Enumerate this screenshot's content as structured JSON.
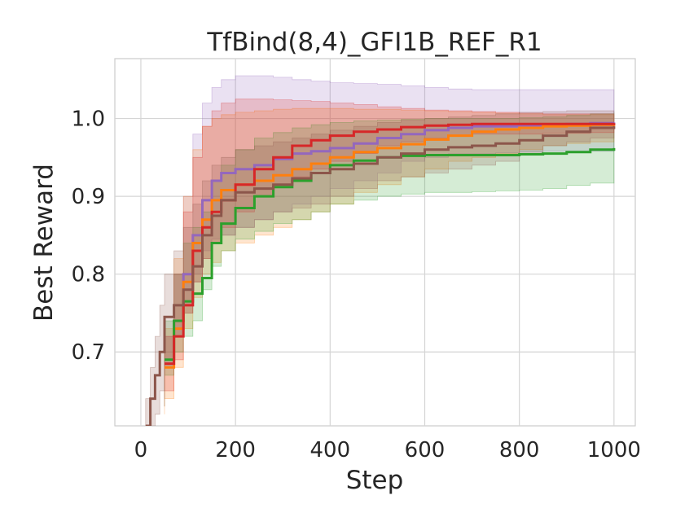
{
  "chart_data": {
    "type": "line",
    "title": "TfBind(8,4)_GFI1B_REF_R1",
    "xlabel": "Step",
    "ylabel": "Best Reward",
    "xlim": [
      -55,
      1045
    ],
    "ylim": [
      0.605,
      1.077
    ],
    "xticks": [
      0,
      200,
      400,
      600,
      800,
      1000
    ],
    "xtick_labels": [
      "0",
      "200",
      "400",
      "600",
      "800",
      "1000"
    ],
    "yticks": [
      0.7,
      0.8,
      0.9,
      1.0
    ],
    "ytick_labels": [
      "0.7",
      "0.8",
      "0.9",
      "1.0"
    ],
    "grid": true,
    "legend": "none",
    "series": [
      {
        "color": "#9467bd",
        "x": [
          50,
          70,
          90,
          110,
          130,
          150,
          170,
          200,
          240,
          280,
          320,
          360,
          400,
          450,
          500,
          550,
          600,
          650,
          700,
          750,
          800,
          850,
          900,
          950,
          1000
        ],
        "y": [
          0.685,
          0.74,
          0.8,
          0.85,
          0.895,
          0.92,
          0.93,
          0.935,
          0.94,
          0.948,
          0.955,
          0.958,
          0.962,
          0.968,
          0.975,
          0.98,
          0.985,
          0.988,
          0.99,
          0.99,
          0.991,
          0.992,
          0.993,
          0.994,
          0.995
        ],
        "lower": [
          0.64,
          0.68,
          0.72,
          0.76,
          0.8,
          0.83,
          0.845,
          0.85,
          0.86,
          0.87,
          0.88,
          0.89,
          0.9,
          0.91,
          0.92,
          0.93,
          0.945,
          0.95,
          0.955,
          0.955,
          0.956,
          0.957,
          0.958,
          0.958,
          0.958
        ],
        "upper": [
          0.72,
          0.8,
          0.9,
          0.98,
          1.02,
          1.04,
          1.05,
          1.055,
          1.055,
          1.053,
          1.05,
          1.048,
          1.046,
          1.045,
          1.044,
          1.042,
          1.04,
          1.038,
          1.037,
          1.037,
          1.037,
          1.037,
          1.037,
          1.037,
          1.037
        ]
      },
      {
        "color": "#ff7f0e",
        "x": [
          50,
          70,
          90,
          110,
          130,
          150,
          170,
          200,
          240,
          280,
          320,
          360,
          400,
          450,
          500,
          550,
          600,
          650,
          700,
          750,
          800,
          850,
          900,
          950,
          1000
        ],
        "y": [
          0.68,
          0.73,
          0.79,
          0.84,
          0.87,
          0.895,
          0.908,
          0.915,
          0.92,
          0.927,
          0.935,
          0.942,
          0.95,
          0.957,
          0.962,
          0.967,
          0.973,
          0.978,
          0.983,
          0.986,
          0.988,
          0.99,
          0.991,
          0.992,
          0.993
        ],
        "lower": [
          0.62,
          0.64,
          0.68,
          0.73,
          0.77,
          0.8,
          0.815,
          0.83,
          0.84,
          0.85,
          0.86,
          0.87,
          0.88,
          0.89,
          0.905,
          0.915,
          0.925,
          0.935,
          0.945,
          0.95,
          0.955,
          0.96,
          0.965,
          0.968,
          0.97
        ],
        "upper": [
          0.73,
          0.82,
          0.9,
          0.96,
          0.99,
          1.0,
          1.005,
          1.008,
          1.01,
          1.012,
          1.013,
          1.013,
          1.013,
          1.012,
          1.012,
          1.011,
          1.01,
          1.009,
          1.008,
          1.007,
          1.006,
          1.005,
          1.005,
          1.005,
          1.005
        ]
      },
      {
        "color": "#2ca02c",
        "x": [
          50,
          70,
          90,
          110,
          130,
          150,
          170,
          200,
          240,
          280,
          320,
          360,
          400,
          450,
          500,
          550,
          600,
          650,
          700,
          750,
          800,
          850,
          900,
          950,
          1000
        ],
        "y": [
          0.69,
          0.74,
          0.765,
          0.775,
          0.795,
          0.84,
          0.865,
          0.885,
          0.9,
          0.912,
          0.92,
          0.93,
          0.94,
          0.946,
          0.95,
          0.952,
          0.953,
          0.953,
          0.953,
          0.953,
          0.954,
          0.955,
          0.957,
          0.96,
          0.962
        ],
        "lower": [
          0.63,
          0.67,
          0.7,
          0.72,
          0.74,
          0.78,
          0.81,
          0.83,
          0.845,
          0.855,
          0.865,
          0.87,
          0.88,
          0.89,
          0.895,
          0.9,
          0.903,
          0.905,
          0.905,
          0.906,
          0.907,
          0.908,
          0.91,
          0.914,
          0.917
        ],
        "upper": [
          0.74,
          0.8,
          0.84,
          0.86,
          0.88,
          0.92,
          0.94,
          0.96,
          0.975,
          0.982,
          0.988,
          0.992,
          0.995,
          0.997,
          0.998,
          0.999,
          1.0,
          1.0,
          1.0,
          1.0,
          1.001,
          1.002,
          1.004,
          1.006,
          1.008
        ]
      },
      {
        "color": "#d62728",
        "x": [
          50,
          70,
          90,
          110,
          130,
          150,
          170,
          200,
          240,
          280,
          320,
          360,
          400,
          450,
          500,
          550,
          600,
          650,
          700,
          750,
          800,
          850,
          900,
          950,
          1000
        ],
        "y": [
          0.685,
          0.72,
          0.76,
          0.83,
          0.86,
          0.88,
          0.895,
          0.915,
          0.935,
          0.95,
          0.965,
          0.972,
          0.978,
          0.983,
          0.986,
          0.989,
          0.991,
          0.992,
          0.993,
          0.993,
          0.993,
          0.993,
          0.993,
          0.993,
          0.994
        ],
        "lower": [
          0.63,
          0.65,
          0.69,
          0.75,
          0.79,
          0.82,
          0.84,
          0.86,
          0.88,
          0.9,
          0.915,
          0.925,
          0.935,
          0.945,
          0.955,
          0.965,
          0.97,
          0.975,
          0.978,
          0.98,
          0.98,
          0.98,
          0.981,
          0.981,
          0.982
        ],
        "upper": [
          0.72,
          0.8,
          0.88,
          0.95,
          0.99,
          1.01,
          1.02,
          1.025,
          1.025,
          1.024,
          1.023,
          1.022,
          1.02,
          1.018,
          1.015,
          1.013,
          1.011,
          1.01,
          1.009,
          1.008,
          1.007,
          1.006,
          1.006,
          1.006,
          1.006
        ]
      },
      {
        "color": "#8c564b",
        "x": [
          10,
          20,
          30,
          40,
          50,
          70,
          90,
          110,
          130,
          150,
          170,
          200,
          240,
          280,
          320,
          360,
          400,
          450,
          500,
          550,
          600,
          650,
          700,
          750,
          800,
          850,
          900,
          950,
          1000
        ],
        "y": [
          0.605,
          0.64,
          0.67,
          0.7,
          0.745,
          0.76,
          0.78,
          0.81,
          0.85,
          0.875,
          0.895,
          0.905,
          0.91,
          0.915,
          0.923,
          0.93,
          0.935,
          0.942,
          0.95,
          0.955,
          0.96,
          0.963,
          0.965,
          0.968,
          0.972,
          0.978,
          0.983,
          0.988,
          0.99
        ],
        "lower": [
          0.58,
          0.59,
          0.6,
          0.62,
          0.65,
          0.69,
          0.72,
          0.75,
          0.79,
          0.82,
          0.84,
          0.85,
          0.86,
          0.87,
          0.88,
          0.885,
          0.89,
          0.9,
          0.91,
          0.92,
          0.925,
          0.93,
          0.935,
          0.94,
          0.945,
          0.955,
          0.965,
          0.97,
          0.975
        ],
        "upper": [
          0.64,
          0.68,
          0.72,
          0.76,
          0.8,
          0.83,
          0.86,
          0.89,
          0.92,
          0.94,
          0.95,
          0.96,
          0.965,
          0.97,
          0.975,
          0.98,
          0.985,
          0.99,
          0.995,
          0.998,
          1.0,
          1.002,
          1.004,
          1.006,
          1.008,
          1.009,
          1.01,
          1.01,
          1.01
        ]
      }
    ]
  }
}
